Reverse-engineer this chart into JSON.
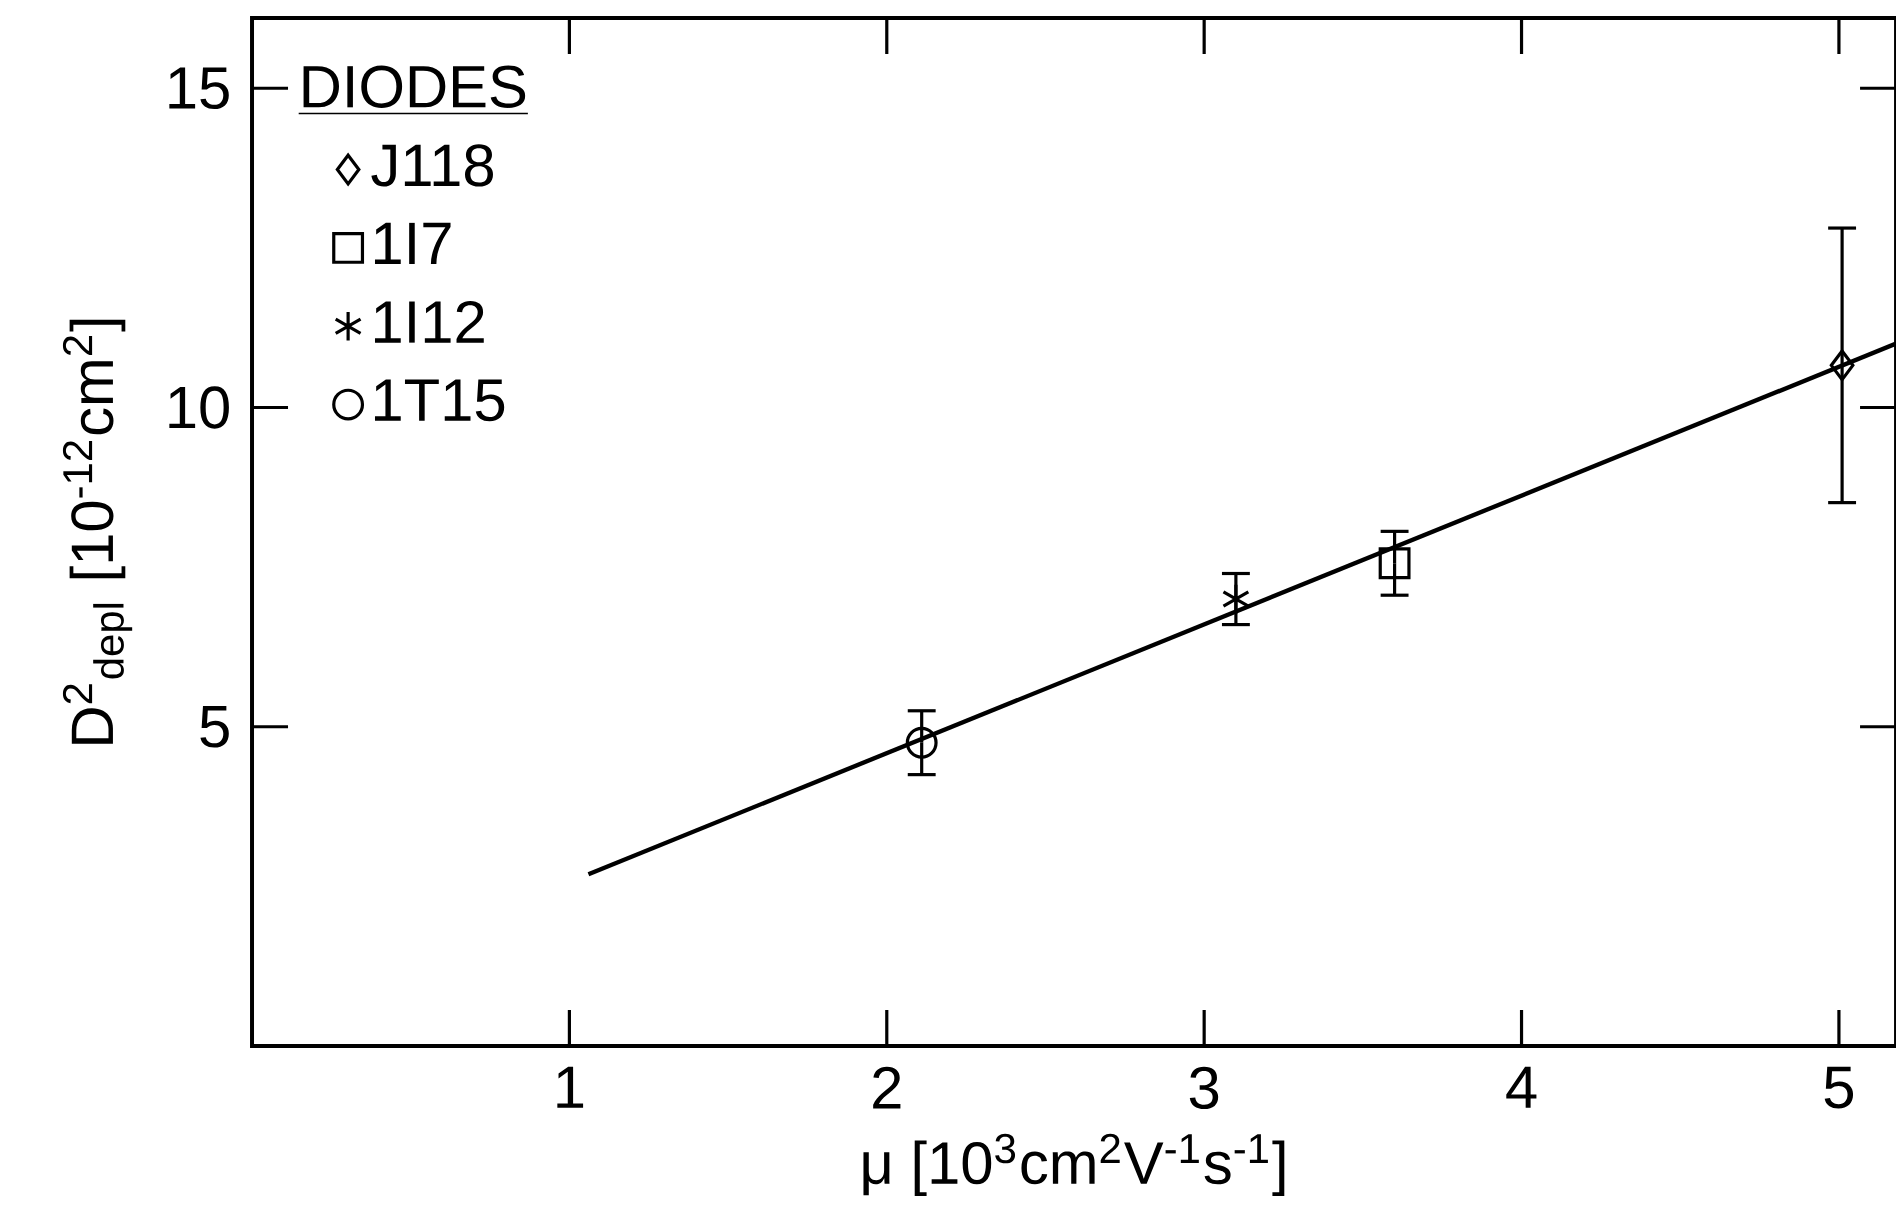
{
  "chart_data": {
    "type": "scatter",
    "xlabel": "μ [10$^{3}$cm$^{2}$V$^{-1}$s$^{-1}$]",
    "ylabel": "D$^{2}$$_{depl}$ [10$^{-12}$cm$^{2}$]",
    "legend_title": "DIODES",
    "legend": "top left",
    "xlim": [
      0,
      5.18
    ],
    "ylim": [
      0,
      16.1
    ],
    "xticks": [
      1,
      2,
      3,
      4,
      5
    ],
    "yticks": [
      5,
      10,
      15
    ],
    "series": [
      {
        "type": "line",
        "color": "#000000",
        "marker": "none",
        "x": [
          1.06,
          5.18
        ],
        "values": [
          2.69,
          11.0
        ]
      },
      {
        "name": "J118",
        "color": "#000000",
        "marker": "diamond",
        "x": [
          5.01
        ],
        "values": [
          10.66
        ],
        "errors": [
          2.15
        ]
      },
      {
        "name": "1I7",
        "color": "#000000",
        "marker": "square",
        "x": [
          3.6
        ],
        "values": [
          7.56
        ],
        "errors": [
          0.5
        ]
      },
      {
        "name": "1I12",
        "color": "#000000",
        "marker": "cross",
        "x": [
          3.1
        ],
        "values": [
          7.0
        ],
        "errors": [
          0.4
        ]
      },
      {
        "name": "1T15",
        "color": "#000000",
        "marker": "circle",
        "x": [
          2.11
        ],
        "values": [
          4.75
        ],
        "errors": [
          0.5
        ]
      }
    ]
  }
}
